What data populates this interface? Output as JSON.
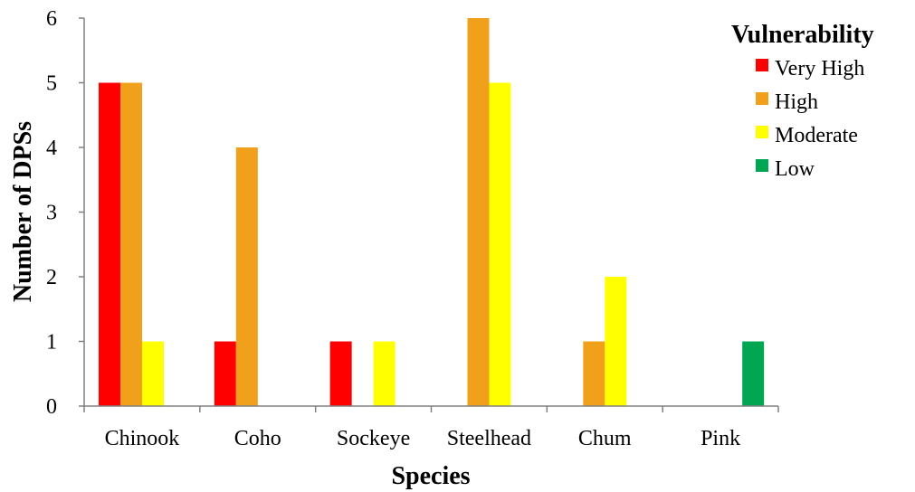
{
  "chart_data": {
    "type": "bar",
    "xlabel": "Species",
    "ylabel": "Number of DPSs",
    "ylim": [
      0,
      6
    ],
    "yticks": [
      0,
      1,
      2,
      3,
      4,
      5,
      6
    ],
    "grid": false,
    "legend_title": "Vulnerability",
    "legend_position": "top-right",
    "categories": [
      "Chinook",
      "Coho",
      "Sockeye",
      "Steelhead",
      "Chum",
      "Pink"
    ],
    "series": [
      {
        "name": "Very High",
        "color": "#ff0000",
        "values": [
          5,
          1,
          1,
          0,
          0,
          0
        ]
      },
      {
        "name": "High",
        "color": "#f0a01a",
        "values": [
          5,
          4,
          0,
          6,
          1,
          0
        ]
      },
      {
        "name": "Moderate",
        "color": "#ffff00",
        "values": [
          1,
          0,
          1,
          5,
          2,
          0
        ]
      },
      {
        "name": "Low",
        "color": "#00a651",
        "values": [
          0,
          0,
          0,
          0,
          0,
          1
        ]
      }
    ]
  }
}
